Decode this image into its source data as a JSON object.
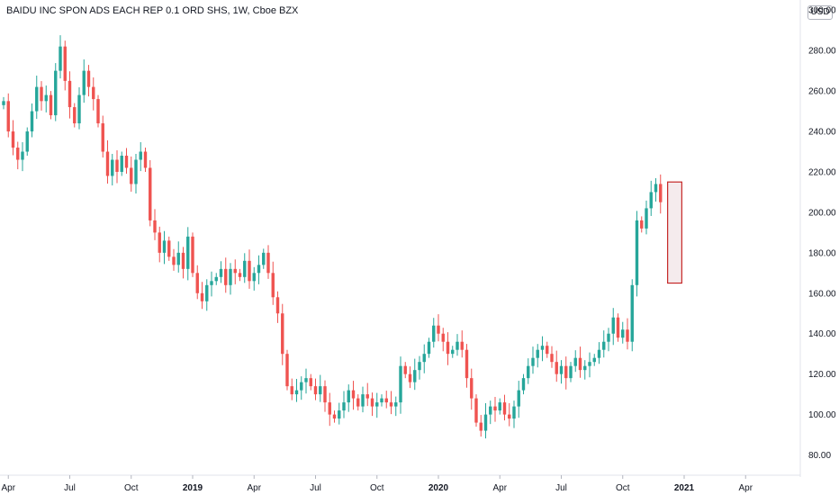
{
  "title": "BAIDU INC SPON ADS EACH REP 0.1 ORD SHS, 1W, Cboe BZX",
  "currency": "USD",
  "colors": {
    "up": "#26a69a",
    "down": "#ef5350",
    "annotation_border": "#c62828",
    "annotation_fill": "#f3e8ea"
  },
  "chart_data": {
    "type": "candlestick",
    "ylim": [
      70,
      305
    ],
    "yticks": [
      "300.00",
      "280.00",
      "260.00",
      "240.00",
      "220.00",
      "200.00",
      "180.00",
      "160.00",
      "140.00",
      "120.00",
      "100.00",
      "80.00"
    ],
    "xticks": [
      {
        "label": "Apr",
        "week": 1,
        "bold": false
      },
      {
        "label": "Jul",
        "week": 14,
        "bold": false
      },
      {
        "label": "Oct",
        "week": 27,
        "bold": false
      },
      {
        "label": "2019",
        "week": 40,
        "bold": true
      },
      {
        "label": "Apr",
        "week": 53,
        "bold": false
      },
      {
        "label": "Jul",
        "week": 66,
        "bold": false
      },
      {
        "label": "Oct",
        "week": 79,
        "bold": false
      },
      {
        "label": "2020",
        "week": 92,
        "bold": true
      },
      {
        "label": "Apr",
        "week": 105,
        "bold": false
      },
      {
        "label": "Jul",
        "week": 118,
        "bold": false
      },
      {
        "label": "Oct",
        "week": 131,
        "bold": false
      },
      {
        "label": "2021",
        "week": 144,
        "bold": true
      },
      {
        "label": "Apr",
        "week": 157,
        "bold": false
      }
    ],
    "close_values": [
      255,
      240,
      232,
      226,
      230,
      240,
      250,
      262,
      255,
      258,
      248,
      270,
      282,
      265,
      252,
      244,
      258,
      270,
      262,
      256,
      244,
      230,
      218,
      226,
      220,
      228,
      222,
      214,
      226,
      230,
      222,
      196,
      190,
      180,
      186,
      178,
      174,
      180,
      172,
      188,
      170,
      160,
      156,
      164,
      166,
      168,
      172,
      164,
      172,
      170,
      168,
      176,
      166,
      170,
      174,
      180,
      170,
      158,
      150,
      130,
      114,
      110,
      112,
      116,
      118,
      114,
      110,
      114,
      106,
      100,
      98,
      102,
      106,
      112,
      108,
      104,
      110,
      108,
      104,
      106,
      108,
      106,
      104,
      106,
      124,
      120,
      116,
      122,
      126,
      130,
      136,
      144,
      140,
      136,
      130,
      132,
      136,
      132,
      118,
      108,
      96,
      92,
      100,
      104,
      102,
      106,
      100,
      98,
      104,
      112,
      118,
      124,
      128,
      132,
      134,
      130,
      126,
      120,
      124,
      118,
      124,
      128,
      122,
      124,
      126,
      128,
      132,
      136,
      140,
      148,
      138,
      142,
      136,
      164,
      196,
      192,
      202,
      210,
      214,
      205
    ],
    "annotation": {
      "week_start": 140.5,
      "week_end": 143.5,
      "low": 165,
      "high": 215
    }
  }
}
